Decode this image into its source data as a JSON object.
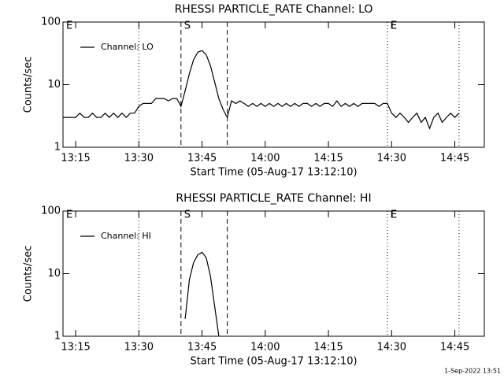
{
  "chart_data": [
    {
      "type": "line",
      "title": "RHESSI PARTICLE_RATE Channel: LO",
      "x_label": "Start Time (05-Aug-17 13:12:10)",
      "y_label": "Counts/sec",
      "log_y": true,
      "ylim": [
        1,
        100
      ],
      "yticks": [
        1,
        10,
        100
      ],
      "xlim": [
        "13:12",
        "14:52"
      ],
      "xticks": [
        "13:15",
        "13:30",
        "13:45",
        "14:00",
        "14:15",
        "14:30",
        "14:45"
      ],
      "legend": "upper left",
      "markers": [
        {
          "x": "13:12",
          "style": "dotted",
          "label": "E"
        },
        {
          "x": "13:30",
          "style": "dotted"
        },
        {
          "x": "13:40",
          "style": "dashed",
          "label": "S"
        },
        {
          "x": "13:51",
          "style": "dashed"
        },
        {
          "x": "14:29",
          "style": "dotted",
          "label": "E"
        },
        {
          "x": "14:46",
          "style": "dotted"
        }
      ],
      "x": [
        "13:12",
        "13:13",
        "13:14",
        "13:15",
        "13:16",
        "13:17",
        "13:18",
        "13:19",
        "13:20",
        "13:21",
        "13:22",
        "13:23",
        "13:24",
        "13:25",
        "13:26",
        "13:27",
        "13:28",
        "13:29",
        "13:30",
        "13:31",
        "13:32",
        "13:33",
        "13:34",
        "13:35",
        "13:36",
        "13:37",
        "13:38",
        "13:39",
        "13:40",
        "13:41",
        "13:42",
        "13:43",
        "13:44",
        "13:45",
        "13:46",
        "13:47",
        "13:48",
        "13:49",
        "13:50",
        "13:51",
        "13:52",
        "13:53",
        "13:54",
        "13:55",
        "13:56",
        "13:57",
        "13:58",
        "13:59",
        "14:00",
        "14:01",
        "14:02",
        "14:03",
        "14:04",
        "14:05",
        "14:06",
        "14:07",
        "14:08",
        "14:09",
        "14:10",
        "14:11",
        "14:12",
        "14:13",
        "14:14",
        "14:15",
        "14:16",
        "14:17",
        "14:18",
        "14:19",
        "14:20",
        "14:21",
        "14:22",
        "14:23",
        "14:24",
        "14:25",
        "14:26",
        "14:27",
        "14:28",
        "14:29",
        "14:30",
        "14:31",
        "14:32",
        "14:33",
        "14:34",
        "14:35",
        "14:36",
        "14:37",
        "14:38",
        "14:39",
        "14:40",
        "14:41",
        "14:42",
        "14:43",
        "14:44",
        "14:45",
        "14:46"
      ],
      "series": [
        {
          "name": "Channel: LO",
          "color": "#000000",
          "values": [
            3,
            3,
            3,
            3,
            3.5,
            3,
            3,
            3.5,
            3,
            3,
            3.5,
            3,
            3.5,
            3,
            3.5,
            3,
            3.5,
            3.5,
            4.5,
            5,
            5,
            5,
            6,
            6,
            6,
            5.5,
            6,
            6,
            4.5,
            8,
            15,
            25,
            33,
            35,
            30,
            20,
            11,
            6,
            4,
            3,
            5.5,
            5,
            5.5,
            5,
            4.5,
            5,
            4.5,
            5,
            4.5,
            5,
            4.5,
            5,
            4.5,
            5,
            4.5,
            5,
            4.5,
            5,
            5,
            4.5,
            5,
            4.5,
            5,
            5,
            4.5,
            5.5,
            4.5,
            5,
            4.5,
            5,
            4.5,
            5,
            5,
            5,
            5,
            4.5,
            5,
            5,
            3.5,
            3,
            3.5,
            3,
            2.5,
            3,
            3.5,
            2.5,
            3,
            2,
            3,
            3.5,
            2.5,
            3,
            3.5,
            3,
            3.5
          ]
        }
      ]
    },
    {
      "type": "line",
      "title": "RHESSI PARTICLE_RATE Channel: HI",
      "x_label": "Start Time (05-Aug-17 13:12:10)",
      "y_label": "Counts/sec",
      "log_y": true,
      "ylim": [
        1,
        100
      ],
      "yticks": [
        1,
        10,
        100
      ],
      "xlim": [
        "13:12",
        "14:52"
      ],
      "xticks": [
        "13:15",
        "13:30",
        "13:45",
        "14:00",
        "14:15",
        "14:30",
        "14:45"
      ],
      "legend": "upper left",
      "markers": [
        {
          "x": "13:12",
          "style": "dotted",
          "label": "E"
        },
        {
          "x": "13:30",
          "style": "dotted"
        },
        {
          "x": "13:40",
          "style": "dashed",
          "label": "S"
        },
        {
          "x": "13:51",
          "style": "dashed"
        },
        {
          "x": "14:29",
          "style": "dotted",
          "label": "E"
        },
        {
          "x": "14:46",
          "style": "dotted"
        }
      ],
      "x": [
        "13:41",
        "13:42",
        "13:43",
        "13:44",
        "13:45",
        "13:46",
        "13:47",
        "13:48",
        "13:49"
      ],
      "series": [
        {
          "name": "Channel: HI",
          "color": "#000000",
          "values": [
            1.9,
            8,
            15,
            20,
            22,
            18,
            9,
            3,
            1
          ]
        }
      ]
    }
  ],
  "footer": "1-Sep-2022 13:51"
}
